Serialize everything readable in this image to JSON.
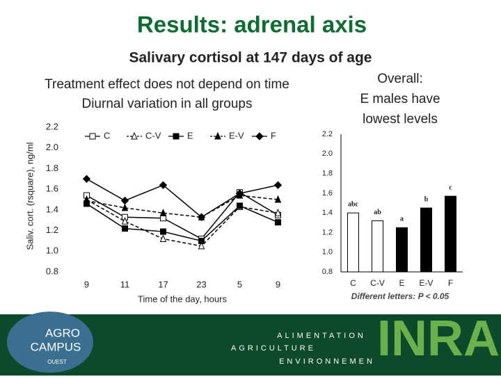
{
  "slide": {
    "title": "Results: adrenal axis",
    "subtitle": "Salivary cortisol at 147 days of age",
    "notes": [
      "Treatment effect does not depend on time",
      "Diurnal variation in all groups"
    ],
    "overall": [
      "Overall:",
      "E males have",
      "lowest levels"
    ],
    "footer": {
      "campus": [
        "AGRO",
        "CAMPUS",
        "OUEST"
      ],
      "motto": [
        "ALIMENTATION",
        "AGRICULTURE",
        "ENVIRONNEMEN"
      ],
      "logo": "INRA"
    }
  },
  "chart_data": [
    {
      "type": "line",
      "x_label": "Time of the day, hours",
      "y_label": "Saliv. cort. (rsquare), ng/ml",
      "categories": [
        "9",
        "11",
        "17",
        "23",
        "5",
        "9"
      ],
      "ylim": [
        0.8,
        2.2
      ],
      "yticks": [
        0.8,
        {
          "value": 1,
          "label": "1.0"
        },
        1.2,
        1.4,
        1.6,
        1.8,
        {
          "value": 2,
          "label": "2.0"
        },
        2.2
      ],
      "series": [
        {
          "name": "C",
          "color": "#000000",
          "marker": "square-open",
          "dash": false,
          "values": [
            1.54,
            1.33,
            1.32,
            1.12,
            1.57,
            1.35
          ]
        },
        {
          "name": "C-V",
          "color": "#000000",
          "marker": "triangle-open",
          "dash": true,
          "values": [
            1.5,
            1.29,
            1.12,
            1.05,
            1.43,
            1.37
          ]
        },
        {
          "name": "E",
          "color": "#000000",
          "marker": "square",
          "dash": false,
          "values": [
            1.46,
            1.22,
            1.19,
            1.1,
            1.44,
            1.28
          ]
        },
        {
          "name": "E-V",
          "color": "#000000",
          "marker": "triangle",
          "dash": true,
          "values": [
            1.49,
            1.42,
            1.37,
            1.33,
            1.54,
            1.5
          ]
        },
        {
          "name": "F",
          "color": "#000000",
          "marker": "diamond",
          "dash": false,
          "values": [
            1.7,
            1.49,
            1.64,
            1.33,
            1.56,
            1.64
          ]
        }
      ]
    },
    {
      "type": "bar",
      "categories": [
        "C",
        "C-V",
        "E",
        "E-V",
        "F"
      ],
      "values": [
        1.4,
        1.32,
        1.25,
        1.45,
        1.57
      ],
      "colors": [
        "#ffffff",
        "#ffffff",
        "#000000",
        "#000000",
        "#000000"
      ],
      "letters": [
        "abc",
        "ab",
        "a",
        "b",
        "c"
      ],
      "note": "Different letters: P < 0.05",
      "ylim": [
        0.8,
        2.2
      ],
      "yticks": [
        0.8,
        {
          "value": 1,
          "label": "1.0"
        },
        1.2,
        1.4,
        1.6,
        1.8,
        {
          "value": 2,
          "label": "2.0"
        },
        2.2
      ]
    }
  ]
}
